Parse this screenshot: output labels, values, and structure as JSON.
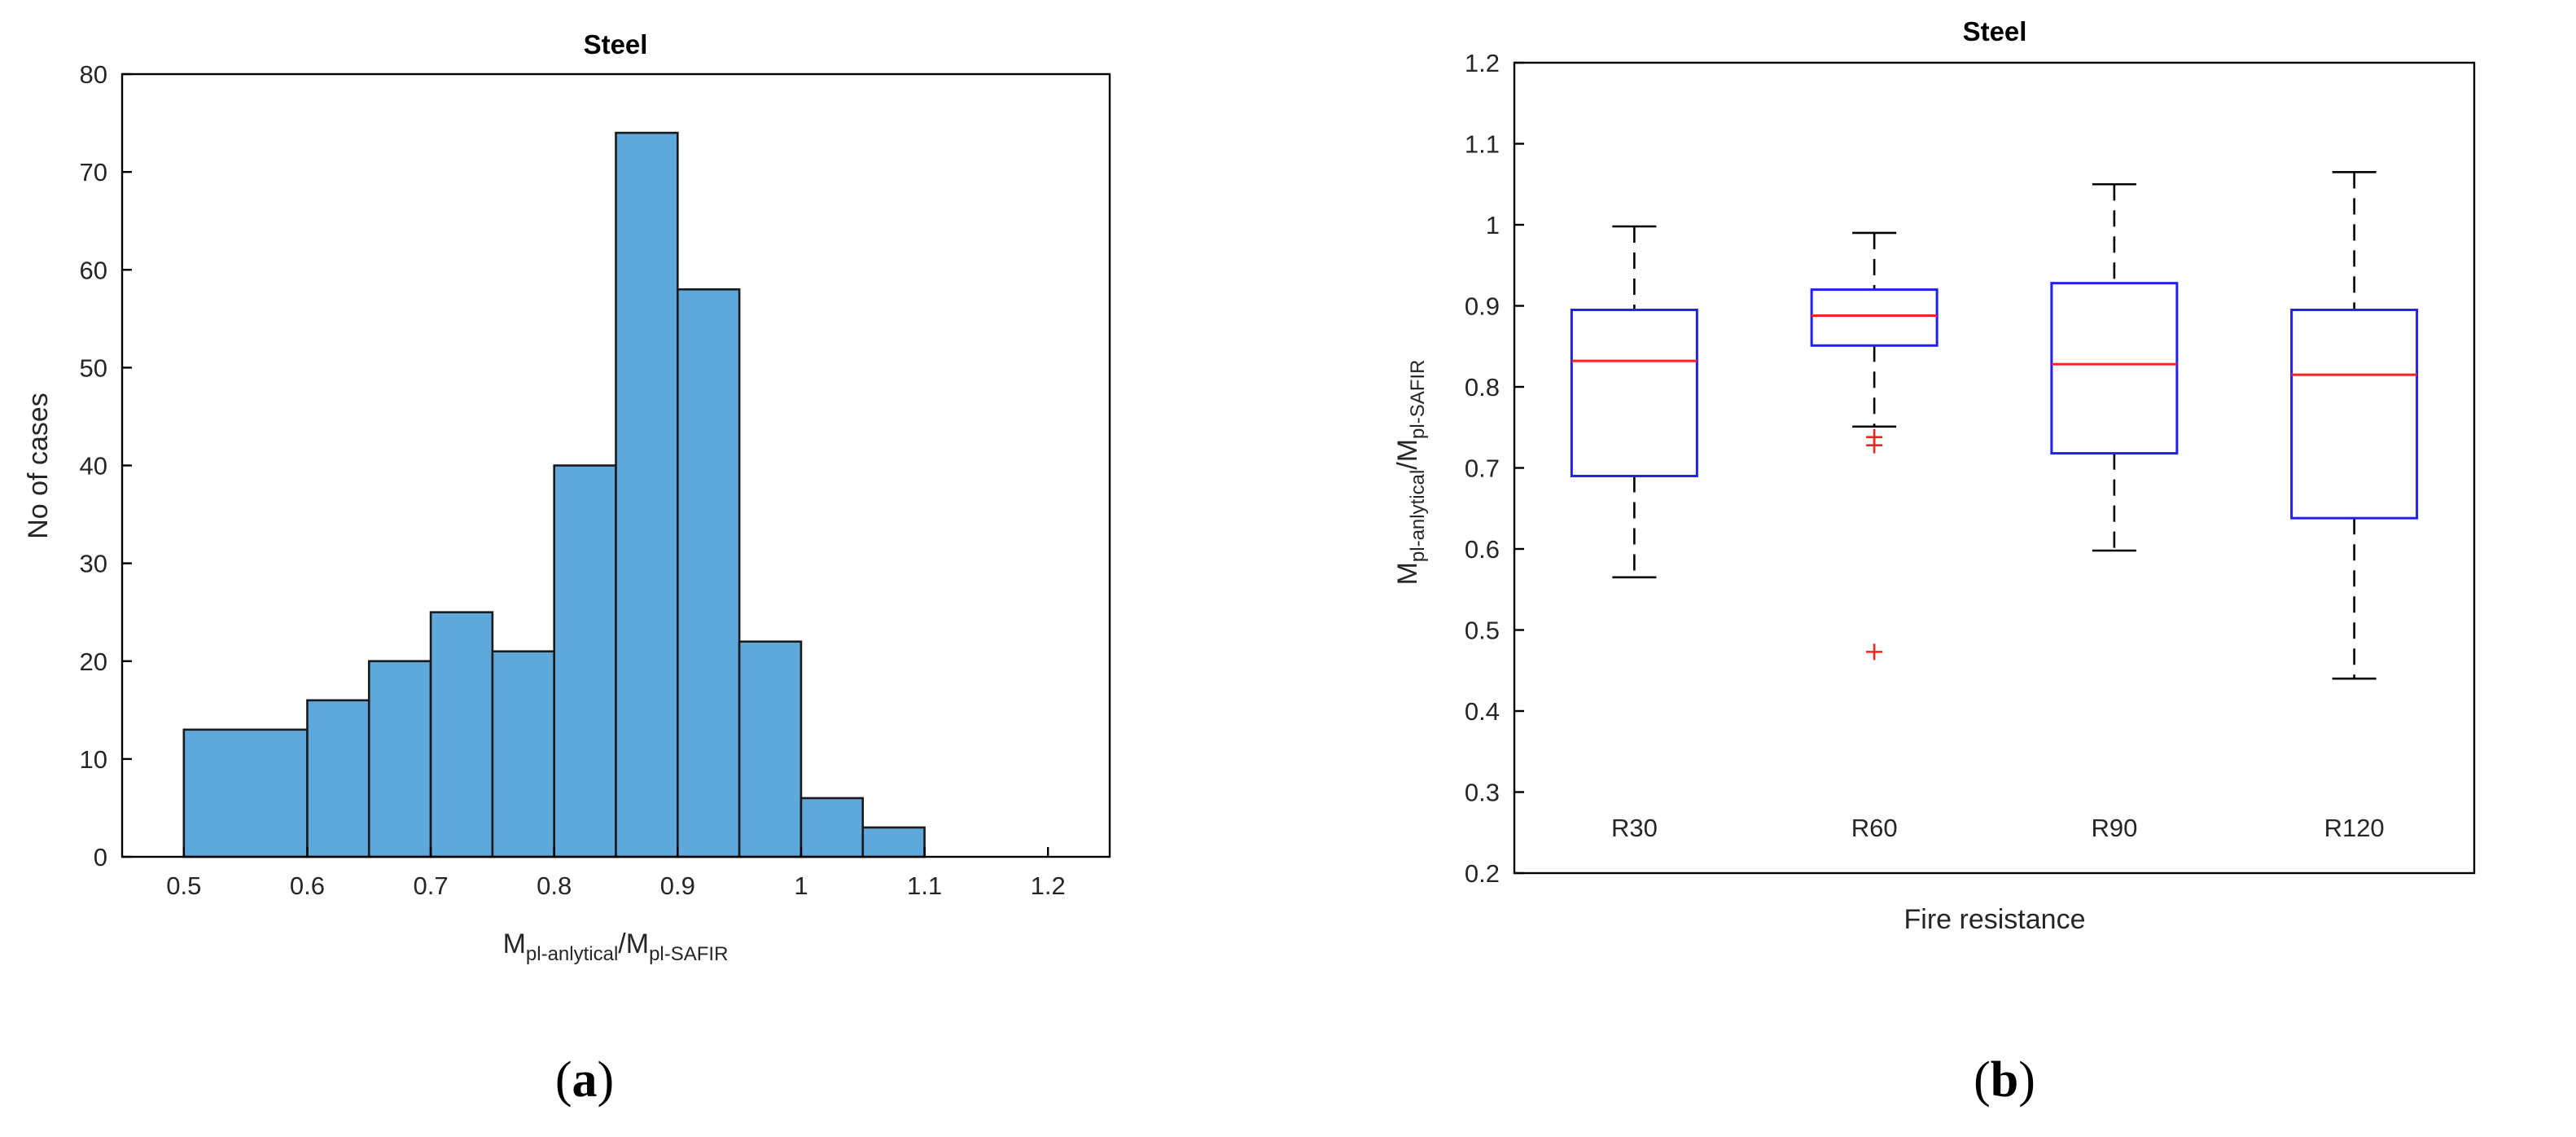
{
  "panels": {
    "a": {
      "label_open": "(",
      "label_letter": "a",
      "label_close": ")"
    },
    "b": {
      "label_open": "(",
      "label_letter": "b",
      "label_close": ")"
    }
  },
  "chart_data": [
    {
      "type": "histogram",
      "title": "Steel",
      "ylabel": "No of cases",
      "xlabel": {
        "main": "M",
        "sub1": "pl-anlytical",
        "slash": "/M",
        "sub2": "pl-SAFIR"
      },
      "xlim": [
        0.45,
        1.25
      ],
      "ylim": [
        0,
        80
      ],
      "xticks": [
        "0.5",
        "0.6",
        "0.7",
        "0.8",
        "0.9",
        "1",
        "1.1",
        "1.2"
      ],
      "yticks": [
        "0",
        "10",
        "20",
        "30",
        "40",
        "50",
        "60",
        "70",
        "80"
      ],
      "bins": [
        {
          "from": 0.5,
          "to": 0.6,
          "count": 13
        },
        {
          "from": 0.6,
          "to": 0.65,
          "count": 16
        },
        {
          "from": 0.65,
          "to": 0.7,
          "count": 20
        },
        {
          "from": 0.7,
          "to": 0.75,
          "count": 25
        },
        {
          "from": 0.75,
          "to": 0.8,
          "count": 21
        },
        {
          "from": 0.8,
          "to": 0.85,
          "count": 40
        },
        {
          "from": 0.85,
          "to": 0.9,
          "count": 74
        },
        {
          "from": 0.9,
          "to": 0.95,
          "count": 58
        },
        {
          "from": 0.95,
          "to": 1.0,
          "count": 22
        },
        {
          "from": 1.0,
          "to": 1.05,
          "count": 6
        },
        {
          "from": 1.05,
          "to": 1.1,
          "count": 3
        }
      ],
      "colors": {
        "bar": "#5fa8dc",
        "edge": "#1a1a1a"
      }
    },
    {
      "type": "box",
      "title": "Steel",
      "xlabel": "Fire resistance",
      "ylabel": {
        "main": "M",
        "sub1": "pl-anlytical",
        "slash": "/M",
        "sub2": "pl-SAFIR"
      },
      "ylim": [
        0.2,
        1.2
      ],
      "yticks": [
        "0.2",
        "0.3",
        "0.4",
        "0.5",
        "0.6",
        "0.7",
        "0.8",
        "0.9",
        "1",
        "1.1",
        "1.2"
      ],
      "categories": [
        "R30",
        "R60",
        "R90",
        "R120"
      ],
      "boxes": [
        {
          "category": "R30",
          "whisker_low": 0.565,
          "q1": 0.69,
          "median": 0.832,
          "q3": 0.895,
          "whisker_high": 0.998,
          "outliers": []
        },
        {
          "category": "R60",
          "whisker_low": 0.751,
          "q1": 0.851,
          "median": 0.888,
          "q3": 0.92,
          "whisker_high": 0.99,
          "outliers": [
            0.738,
            0.728,
            0.473
          ]
        },
        {
          "category": "R90",
          "whisker_low": 0.598,
          "q1": 0.718,
          "median": 0.828,
          "q3": 0.928,
          "whisker_high": 1.05,
          "outliers": []
        },
        {
          "category": "R120",
          "whisker_low": 0.44,
          "q1": 0.638,
          "median": 0.815,
          "q3": 0.895,
          "whisker_high": 1.065,
          "outliers": []
        }
      ],
      "colors": {
        "box": "#2020f0",
        "median": "#ff2020",
        "outlier": "#ff2020",
        "whisker": "#000000"
      }
    }
  ]
}
